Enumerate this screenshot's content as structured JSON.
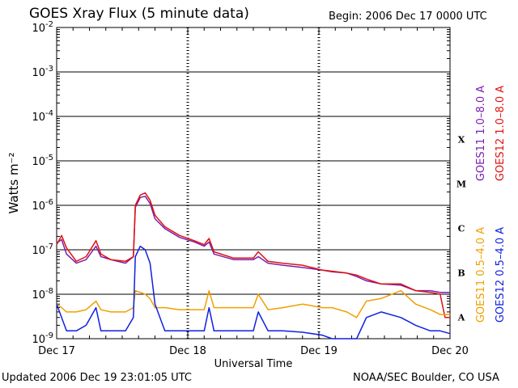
{
  "header": {
    "title": "GOES Xray Flux (5 minute data)",
    "begin": "Begin:  2006 Dec 17 0000 UTC"
  },
  "footer": {
    "updated": "Updated 2006 Dec 19 23:01:05 UTC",
    "credit": "NOAA/SEC Boulder, CO USA"
  },
  "chart_data": {
    "type": "line",
    "title": "GOES Xray Flux (5 minute data)",
    "xlabel": "Universal Time",
    "ylabel": "Watts m⁻²",
    "x_scale": "time",
    "y_scale": "log",
    "ylim": [
      1e-09,
      0.01
    ],
    "x_ticks": [
      "Dec 17",
      "Dec 18",
      "Dec 19",
      "Dec 20"
    ],
    "y_ticks": [
      {
        "base": "10",
        "exp": "-2"
      },
      {
        "base": "10",
        "exp": "-3"
      },
      {
        "base": "10",
        "exp": "-4"
      },
      {
        "base": "10",
        "exp": "-5"
      },
      {
        "base": "10",
        "exp": "-6"
      },
      {
        "base": "10",
        "exp": "-7"
      },
      {
        "base": "10",
        "exp": "-8"
      },
      {
        "base": "10",
        "exp": "-9"
      }
    ],
    "flare_classes": [
      "X",
      "M",
      "C",
      "B",
      "A"
    ],
    "grid": true,
    "legend_right": [
      {
        "name": "GOES11 1.0–8.0 A",
        "color": "#7a1fb0"
      },
      {
        "name": "GOES12 1.0–8.0 A",
        "color": "#e01010"
      },
      {
        "name": "GOES11 0.5–4.0 A",
        "color": "#f0a000"
      },
      {
        "name": "GOES12 0.5–4.0 A",
        "color": "#1020e0"
      }
    ],
    "series": [
      {
        "name": "GOES11 1.0–8.0 A",
        "color": "#7a1fb0",
        "points": [
          [
            0,
            1.4e-07
          ],
          [
            0.05,
            1.7e-07
          ],
          [
            0.1,
            8e-08
          ],
          [
            0.2,
            5e-08
          ],
          [
            0.3,
            6e-08
          ],
          [
            0.4,
            1.2e-07
          ],
          [
            0.45,
            7e-08
          ],
          [
            0.55,
            6e-08
          ],
          [
            0.7,
            5e-08
          ],
          [
            0.78,
            7e-08
          ],
          [
            0.8,
            9e-07
          ],
          [
            0.85,
            1.5e-06
          ],
          [
            0.9,
            1.6e-06
          ],
          [
            0.95,
            1.1e-06
          ],
          [
            1.0,
            5e-07
          ],
          [
            1.1,
            3e-07
          ],
          [
            1.25,
            1.9e-07
          ],
          [
            1.4,
            1.5e-07
          ],
          [
            1.5,
            1.2e-07
          ],
          [
            1.55,
            1.5e-07
          ],
          [
            1.6,
            8e-08
          ],
          [
            1.8,
            6e-08
          ],
          [
            2.0,
            6e-08
          ],
          [
            2.05,
            7e-08
          ],
          [
            2.15,
            5e-08
          ],
          [
            2.3,
            4.5e-08
          ],
          [
            2.5,
            4e-08
          ],
          [
            2.7,
            3.5e-08
          ],
          [
            2.8,
            3.2e-08
          ],
          [
            2.95,
            3e-08
          ],
          [
            3.05,
            2.5e-08
          ],
          [
            3.15,
            2e-08
          ],
          [
            3.3,
            1.7e-08
          ],
          [
            3.5,
            1.6e-08
          ],
          [
            3.65,
            1.2e-08
          ],
          [
            3.8,
            1.2e-08
          ],
          [
            3.9,
            1.1e-08
          ],
          [
            4.0,
            1.1e-08
          ]
        ]
      },
      {
        "name": "GOES12 1.0–8.0 A",
        "color": "#e01010",
        "points": [
          [
            0,
            1.3e-07
          ],
          [
            0.05,
            2.1e-07
          ],
          [
            0.1,
            1.1e-07
          ],
          [
            0.2,
            5.5e-08
          ],
          [
            0.3,
            7e-08
          ],
          [
            0.4,
            1.6e-07
          ],
          [
            0.45,
            8e-08
          ],
          [
            0.55,
            6e-08
          ],
          [
            0.7,
            5.5e-08
          ],
          [
            0.78,
            7e-08
          ],
          [
            0.8,
            1e-06
          ],
          [
            0.85,
            1.7e-06
          ],
          [
            0.9,
            1.9e-06
          ],
          [
            0.95,
            1.3e-06
          ],
          [
            1.0,
            6e-07
          ],
          [
            1.1,
            3.3e-07
          ],
          [
            1.25,
            2.1e-07
          ],
          [
            1.4,
            1.6e-07
          ],
          [
            1.5,
            1.3e-07
          ],
          [
            1.55,
            1.8e-07
          ],
          [
            1.6,
            9e-08
          ],
          [
            1.8,
            6.5e-08
          ],
          [
            2.0,
            6.5e-08
          ],
          [
            2.05,
            9e-08
          ],
          [
            2.15,
            5.5e-08
          ],
          [
            2.3,
            5e-08
          ],
          [
            2.5,
            4.5e-08
          ],
          [
            2.7,
            3.5e-08
          ],
          [
            2.8,
            3.3e-08
          ],
          [
            2.95,
            3e-08
          ],
          [
            3.05,
            2.7e-08
          ],
          [
            3.15,
            2.2e-08
          ],
          [
            3.3,
            1.7e-08
          ],
          [
            3.5,
            1.7e-08
          ],
          [
            3.65,
            1.2e-08
          ],
          [
            3.8,
            1.1e-08
          ],
          [
            3.9,
            1e-08
          ],
          [
            3.95,
            3e-09
          ],
          [
            4.0,
            3e-09
          ]
        ]
      },
      {
        "name": "GOES11 0.5–4.0 A",
        "color": "#f0a000",
        "points": [
          [
            0,
            6e-09
          ],
          [
            0.05,
            5e-09
          ],
          [
            0.1,
            4e-09
          ],
          [
            0.2,
            4e-09
          ],
          [
            0.3,
            4.5e-09
          ],
          [
            0.4,
            7e-09
          ],
          [
            0.45,
            4.5e-09
          ],
          [
            0.55,
            4e-09
          ],
          [
            0.7,
            4e-09
          ],
          [
            0.78,
            5e-09
          ],
          [
            0.8,
            1.2e-08
          ],
          [
            0.85,
            1.1e-08
          ],
          [
            0.9,
            1e-08
          ],
          [
            0.95,
            8e-09
          ],
          [
            1.0,
            5e-09
          ],
          [
            1.1,
            5e-09
          ],
          [
            1.25,
            4.5e-09
          ],
          [
            1.4,
            4.5e-09
          ],
          [
            1.5,
            4.5e-09
          ],
          [
            1.55,
            1.2e-08
          ],
          [
            1.6,
            5e-09
          ],
          [
            1.8,
            5e-09
          ],
          [
            2.0,
            5e-09
          ],
          [
            2.05,
            1e-08
          ],
          [
            2.15,
            4.5e-09
          ],
          [
            2.3,
            5e-09
          ],
          [
            2.5,
            6e-09
          ],
          [
            2.7,
            5e-09
          ],
          [
            2.8,
            5e-09
          ],
          [
            2.95,
            4e-09
          ],
          [
            3.05,
            3e-09
          ],
          [
            3.15,
            7e-09
          ],
          [
            3.3,
            8e-09
          ],
          [
            3.5,
            1.2e-08
          ],
          [
            3.65,
            6e-09
          ],
          [
            3.8,
            4.5e-09
          ],
          [
            3.9,
            3.5e-09
          ],
          [
            4.0,
            3.5e-09
          ]
        ]
      },
      {
        "name": "GOES12 0.5–4.0 A",
        "color": "#1020e0",
        "points": [
          [
            0,
            6e-09
          ],
          [
            0.05,
            3e-09
          ],
          [
            0.1,
            1.5e-09
          ],
          [
            0.2,
            1.5e-09
          ],
          [
            0.3,
            2e-09
          ],
          [
            0.4,
            5e-09
          ],
          [
            0.45,
            1.5e-09
          ],
          [
            0.55,
            1.5e-09
          ],
          [
            0.7,
            1.5e-09
          ],
          [
            0.78,
            3e-09
          ],
          [
            0.8,
            7e-08
          ],
          [
            0.85,
            1.2e-07
          ],
          [
            0.9,
            1e-07
          ],
          [
            0.95,
            5e-08
          ],
          [
            1.0,
            6e-09
          ],
          [
            1.1,
            1.5e-09
          ],
          [
            1.25,
            1.5e-09
          ],
          [
            1.4,
            1.5e-09
          ],
          [
            1.5,
            1.5e-09
          ],
          [
            1.55,
            5e-09
          ],
          [
            1.6,
            1.5e-09
          ],
          [
            1.8,
            1.5e-09
          ],
          [
            2.0,
            1.5e-09
          ],
          [
            2.05,
            4e-09
          ],
          [
            2.15,
            1.5e-09
          ],
          [
            2.3,
            1.5e-09
          ],
          [
            2.5,
            1.4e-09
          ],
          [
            2.7,
            1.2e-09
          ],
          [
            2.8,
            1e-09
          ],
          [
            2.95,
            1e-09
          ],
          [
            3.05,
            1e-09
          ],
          [
            3.15,
            3e-09
          ],
          [
            3.3,
            4e-09
          ],
          [
            3.5,
            3e-09
          ],
          [
            3.65,
            2e-09
          ],
          [
            3.8,
            1.5e-09
          ],
          [
            3.9,
            1.5e-09
          ],
          [
            4.0,
            1.3e-09
          ]
        ]
      }
    ]
  }
}
